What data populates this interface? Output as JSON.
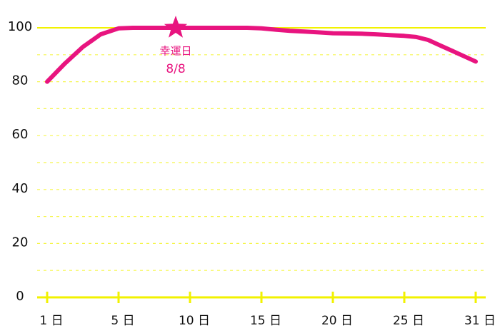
{
  "chart_data": {
    "type": "line",
    "x": [
      1,
      2,
      3,
      4,
      5,
      6,
      7,
      8,
      9,
      10,
      11,
      12,
      13,
      14,
      15,
      16,
      17,
      18,
      19,
      20,
      21,
      22,
      23,
      24,
      25,
      26,
      27,
      28,
      29,
      30,
      31
    ],
    "series": [
      {
        "color": "#e8147f",
        "values": [
          80,
          86.8,
          92.9,
          97.6,
          99.8,
          100,
          100,
          100,
          100,
          100,
          100,
          100,
          100,
          100,
          99.8,
          99.3,
          98.9,
          98.6,
          98.3,
          98,
          97.9,
          97.8,
          97.6,
          97.3,
          97,
          96.6,
          95.5,
          93.5,
          91.5,
          89.5,
          87.5
        ]
      }
    ],
    "xlim": [
      1,
      31
    ],
    "xticks": [
      {
        "value": 1,
        "label": "1 日"
      },
      {
        "value": 5,
        "label": "5 日"
      },
      {
        "value": 10,
        "label": "10 日"
      },
      {
        "value": 15,
        "label": "15 日"
      },
      {
        "value": 20,
        "label": "20 日"
      },
      {
        "value": 25,
        "label": "25 日"
      },
      {
        "value": 31,
        "label": "31 日"
      }
    ],
    "ylim": [
      0,
      100
    ],
    "yticks": [
      0,
      20,
      40,
      60,
      80,
      100
    ],
    "minor_yticks": [
      10,
      30,
      50,
      70,
      90
    ],
    "grid": true,
    "axis_color": "#f2f200",
    "annotations": [
      {
        "x": 9,
        "y": 100,
        "text": "幸運日",
        "subtext": "8/8",
        "color": "#e8147f"
      }
    ]
  }
}
